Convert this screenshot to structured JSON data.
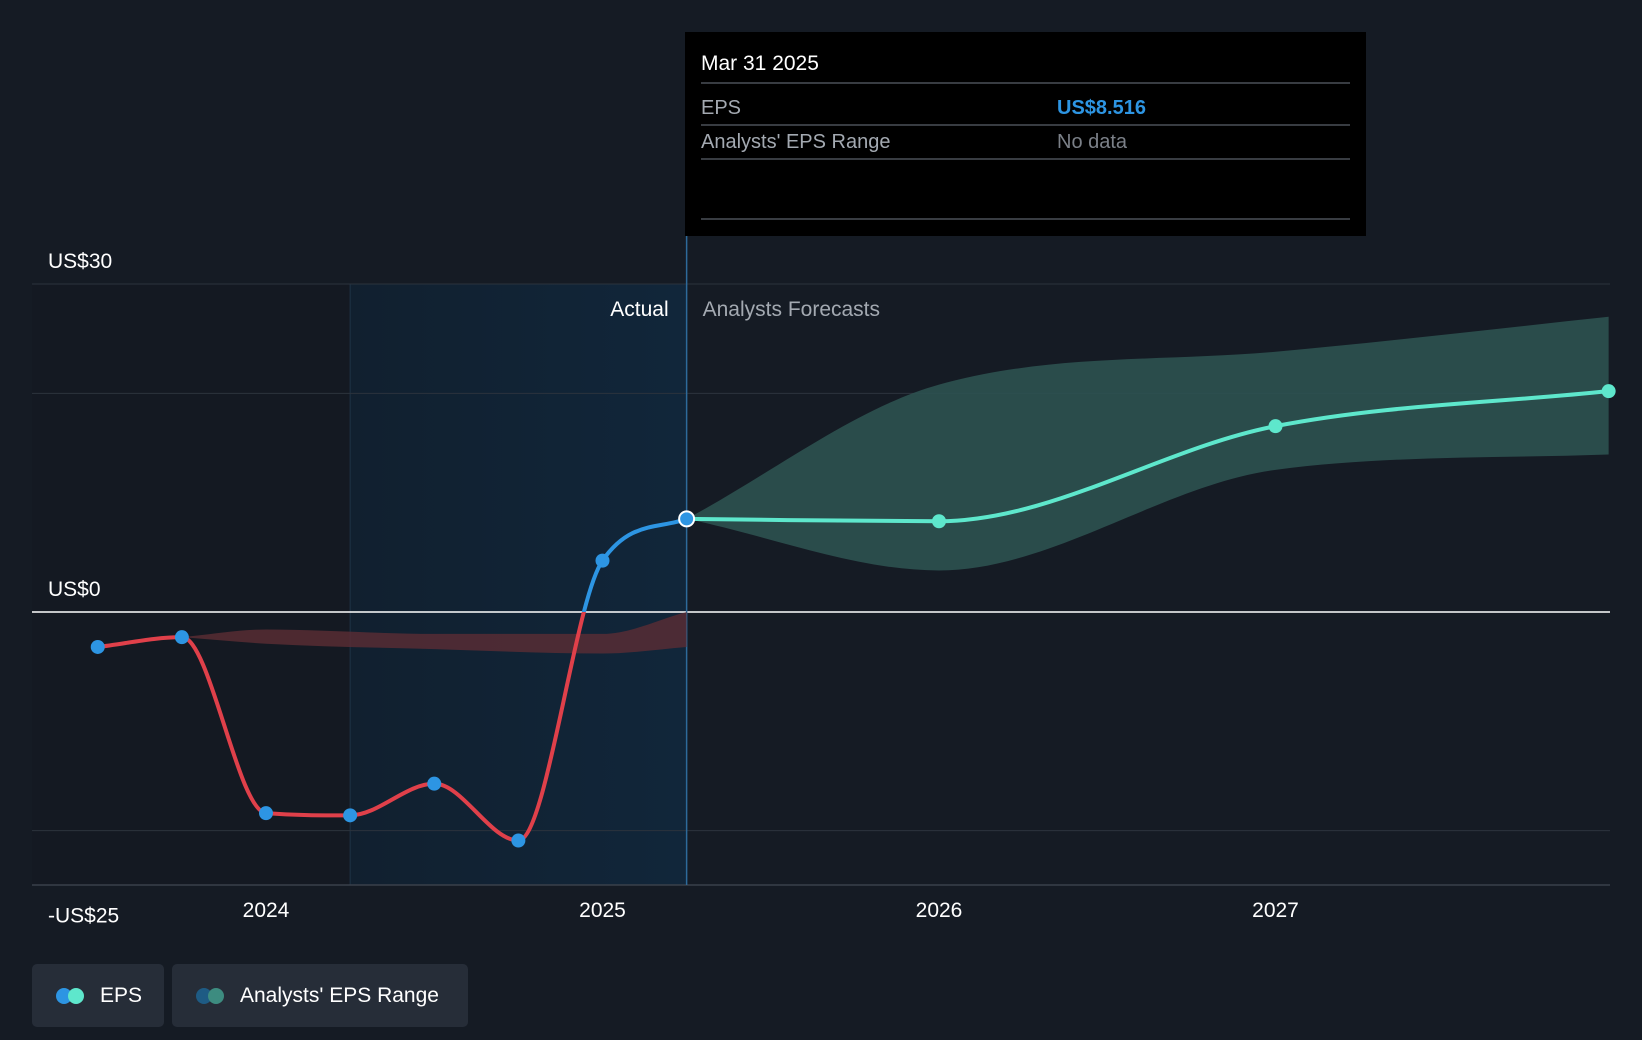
{
  "colors": {
    "background": "#151b24",
    "grid": "#2c333d",
    "zero_line": "#ffffff",
    "actual_region": "#11263a",
    "eps_negative": "#e0404a",
    "eps_positive": "#2d95e3",
    "forecast": "#5ee7cc",
    "forecast_range": "#2e5552",
    "actual_range": "#5b2d34",
    "tooltip_bg": "#000000",
    "tooltip_value": "#2d95e3"
  },
  "chart_data": {
    "type": "line",
    "y_axis": {
      "min": -25,
      "max": 30,
      "labels": [
        {
          "value": 30,
          "text": "US$30"
        },
        {
          "value": 0,
          "text": "US$0"
        },
        {
          "value": -25,
          "text": "-US$25"
        }
      ],
      "gridlines": [
        30,
        20,
        0,
        -20
      ]
    },
    "x_axis": {
      "min": 2023.3,
      "max": 2027.99,
      "ticks": [
        {
          "value": 2024,
          "label": "2024"
        },
        {
          "value": 2025,
          "label": "2025"
        },
        {
          "value": 2026,
          "label": "2026"
        },
        {
          "value": 2027,
          "label": "2027"
        }
      ]
    },
    "sections": {
      "actual_label": "Actual",
      "forecast_label": "Analysts Forecasts",
      "actual_band_start": 2024.25,
      "divider": 2025.25
    },
    "series": [
      {
        "name": "EPS",
        "kind": "actual",
        "points": [
          {
            "x": 2023.5,
            "y": -3.2
          },
          {
            "x": 2023.75,
            "y": -2.3
          },
          {
            "x": 2024.0,
            "y": -18.4
          },
          {
            "x": 2024.25,
            "y": -18.6
          },
          {
            "x": 2024.5,
            "y": -15.7
          },
          {
            "x": 2024.75,
            "y": -20.9
          },
          {
            "x": 2025.0,
            "y": 4.7
          },
          {
            "x": 2025.25,
            "y": 8.516
          }
        ]
      },
      {
        "name": "EPS",
        "kind": "forecast",
        "points": [
          {
            "x": 2025.25,
            "y": 8.516
          },
          {
            "x": 2026.0,
            "y": 8.3
          },
          {
            "x": 2027.0,
            "y": 17.0
          },
          {
            "x": 2027.99,
            "y": 20.2
          }
        ]
      }
    ],
    "ranges": [
      {
        "name": "Analysts' EPS Range",
        "kind": "actual",
        "x": [
          2023.75,
          2024.0,
          2024.5,
          2025.0,
          2025.25
        ],
        "high": [
          -2.3,
          -1.6,
          -2.0,
          -2.0,
          0.0
        ],
        "low": [
          -2.3,
          -2.9,
          -3.4,
          -3.8,
          -3.2
        ]
      },
      {
        "name": "Analysts' EPS Range",
        "kind": "forecast",
        "x": [
          2025.25,
          2026.0,
          2027.0,
          2027.99
        ],
        "high": [
          8.516,
          20.8,
          23.8,
          27.0
        ],
        "low": [
          8.516,
          3.8,
          13.0,
          14.4
        ]
      }
    ],
    "legend": [
      {
        "name": "EPS",
        "colors": [
          "#2d95e3",
          "#5ee7cc"
        ]
      },
      {
        "name": "Analysts' EPS Range",
        "colors": [
          "#1e5b84",
          "#3d8c80"
        ]
      }
    ],
    "tooltip": {
      "date": "Mar 31 2025",
      "rows": [
        {
          "key": "EPS",
          "value": "US$8.516",
          "style": "value"
        },
        {
          "key": "Analysts' EPS Range",
          "value": "No data",
          "style": "nodata"
        }
      ]
    }
  }
}
